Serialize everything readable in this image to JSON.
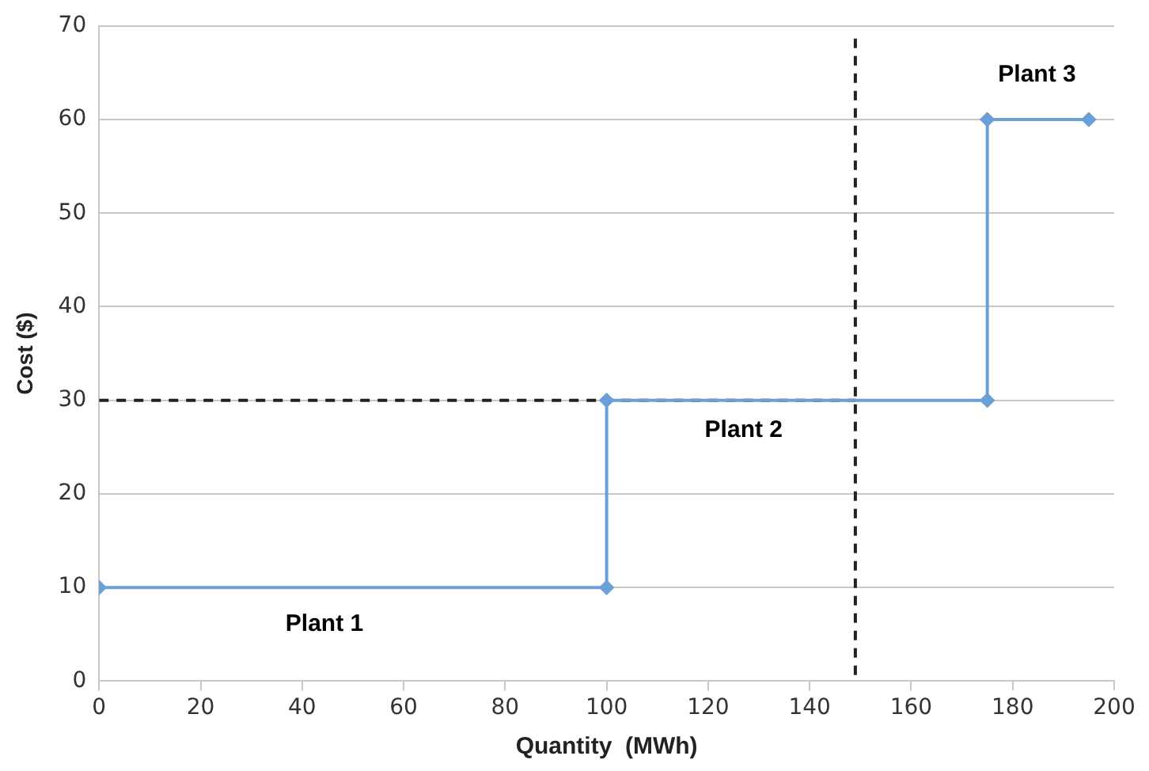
{
  "chart_data": {
    "type": "line",
    "xlabel": "Quantity  (MWh)",
    "ylabel": "Cost ($)",
    "series": [
      {
        "x": [
          0,
          100,
          100,
          175,
          175,
          195
        ],
        "values": [
          10,
          10,
          30,
          30,
          60,
          60
        ],
        "color": "#6a9fd8",
        "marker": "diamond",
        "line_style": "solid"
      },
      {
        "x": [
          0,
          149
        ],
        "values": [
          30,
          30
        ],
        "color": "#222222",
        "marker": "none",
        "line_style": "dashed"
      }
    ],
    "ref_lines": [
      {
        "axis": "x",
        "value": 149,
        "color": "#222222",
        "line_style": "dashed"
      }
    ],
    "annotations": [
      "Plant 1",
      "Plant 2",
      "Plant 3"
    ],
    "xlim": [
      0,
      200
    ],
    "xticks": [
      0,
      20,
      40,
      60,
      80,
      100,
      120,
      140,
      160,
      180,
      200
    ],
    "ylim": [
      0,
      70
    ],
    "yticks": [
      0,
      10,
      20,
      30,
      40,
      50,
      60,
      70
    ],
    "grid": "y",
    "legend": false
  }
}
